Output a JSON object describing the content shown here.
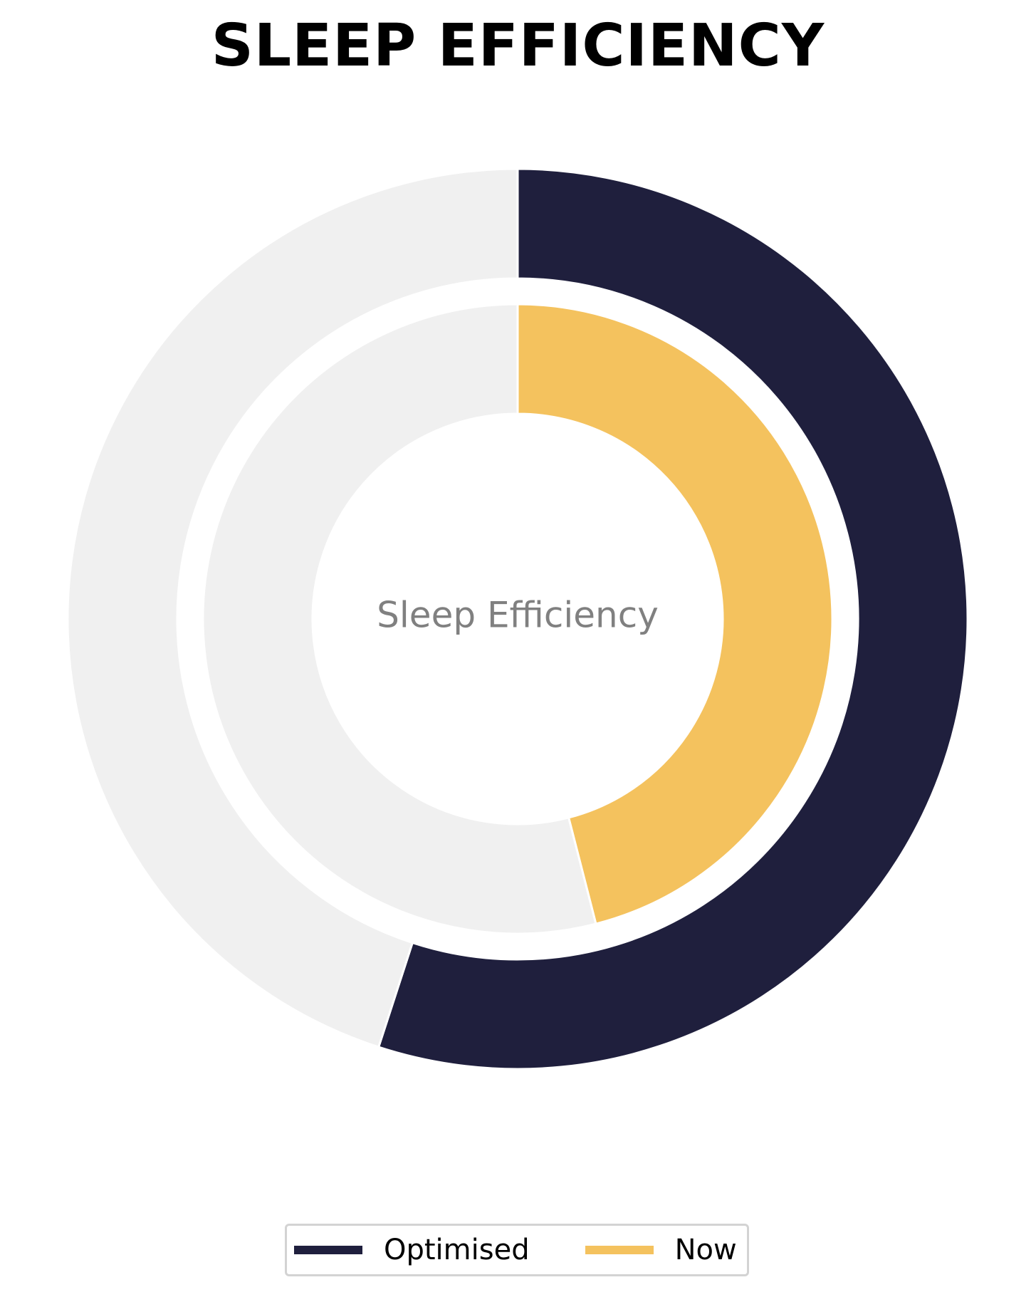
{
  "chart_data": {
    "type": "pie",
    "title": "SLEEP EFFICIENCY",
    "center_label": "Sleep Efficiency",
    "series": [
      {
        "name": "Optimised",
        "value": 55,
        "ring": "outer",
        "color": "#1f1f3d"
      },
      {
        "name": "Now",
        "value": 46,
        "ring": "inner",
        "color": "#f4c25e"
      }
    ],
    "max": 100,
    "remainder_color": "#f0f0f0",
    "legend_position": "bottom-center"
  },
  "legend": {
    "items": [
      {
        "label": "Optimised",
        "color": "#1f1f3d"
      },
      {
        "label": "Now",
        "color": "#f4c25e"
      }
    ]
  }
}
